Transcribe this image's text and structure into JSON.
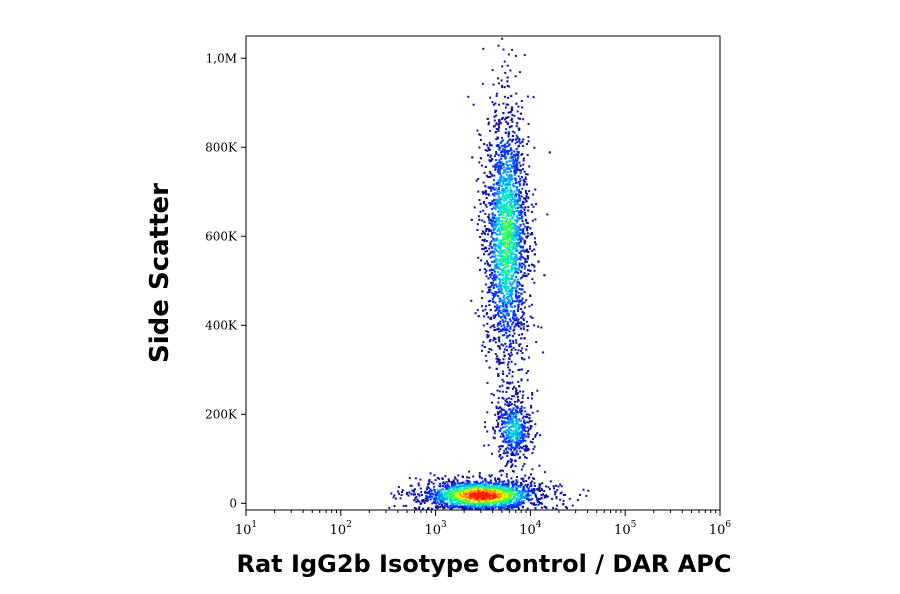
{
  "chart_data": {
    "type": "scatter",
    "title": "",
    "xlabel": "Rat IgG2b Isotype Control / DAR APC",
    "ylabel": "Side Scatter",
    "x_scale": "log",
    "xlim": [
      10,
      1000000
    ],
    "ylim": [
      -15000,
      1050000
    ],
    "grid": false,
    "legend": "none",
    "density_colormap": [
      "#1010a0",
      "#0033ff",
      "#00a0ff",
      "#00e8c8",
      "#40ff40",
      "#e0ff00",
      "#ff9000",
      "#ff1a00"
    ],
    "x_ticks": [
      {
        "base": "10",
        "exp": "1",
        "value": 10
      },
      {
        "base": "10",
        "exp": "2",
        "value": 100
      },
      {
        "base": "10",
        "exp": "3",
        "value": 1000
      },
      {
        "base": "10",
        "exp": "4",
        "value": 10000
      },
      {
        "base": "10",
        "exp": "5",
        "value": 100000
      },
      {
        "base": "10",
        "exp": "6",
        "value": 1000000
      }
    ],
    "y_ticks": [
      {
        "label": "0",
        "value": 0
      },
      {
        "label": "200K",
        "value": 200000
      },
      {
        "label": "400K",
        "value": 400000
      },
      {
        "label": "600K",
        "value": 600000
      },
      {
        "label": "800K",
        "value": 800000
      },
      {
        "label": "1,0M",
        "value": 1000000
      }
    ],
    "populations": [
      {
        "x_center": 3000,
        "y_center": 20000,
        "x_spread_log": 0.33,
        "y_spread": 18000,
        "events": 1800,
        "peak_density": "high"
      },
      {
        "x_center": 5500,
        "y_center": 600000,
        "x_spread_log": 0.12,
        "y_spread": 150000,
        "events": 2400,
        "peak_density": "medium"
      },
      {
        "x_center": 6500,
        "y_center": 170000,
        "x_spread_log": 0.1,
        "y_spread": 40000,
        "events": 500,
        "peak_density": "low"
      }
    ]
  }
}
